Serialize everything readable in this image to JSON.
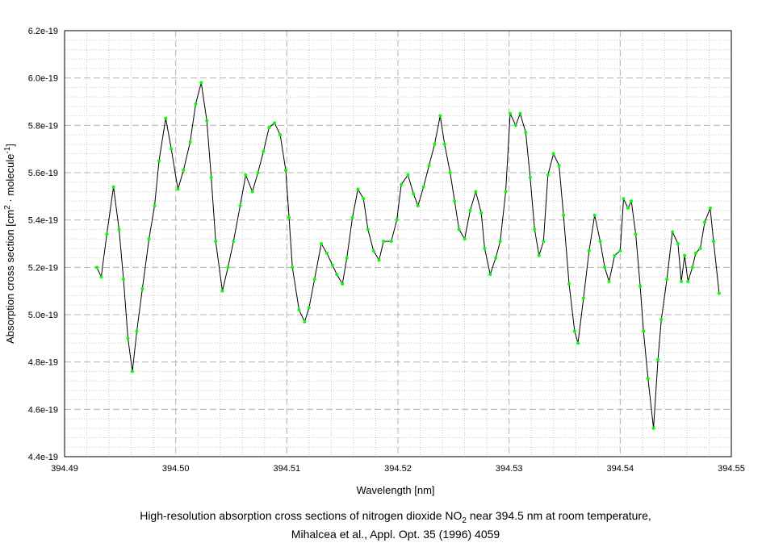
{
  "chart_data": {
    "type": "line",
    "title_lines": [
      [
        "High-resolution absorption cross sections of nitrogen dioxide NO",
        "2",
        " near 394.5 nm at room temperature,"
      ],
      [
        "Mihalcea et al., Appl. Opt. 35 (1996) 4059"
      ]
    ],
    "x_label": "Wavelength [nm]",
    "y_label": [
      "Absorption cross section [cm",
      "2",
      " · molecule",
      "-1",
      "]"
    ],
    "xlim": [
      394.49,
      394.55
    ],
    "xticks": [
      394.49,
      {
        "value": 394.5,
        "label": "394.50"
      },
      394.51,
      394.52,
      394.53,
      394.54,
      394.55
    ],
    "ylim": [
      4.4e-19,
      6.2e-19
    ],
    "yticks": [
      4.4e-19,
      4.6e-19,
      4.8e-19,
      {
        "value": 5e-19,
        "label": "5.0e-19"
      },
      5.2e-19,
      5.4e-19,
      5.6e-19,
      5.8e-19,
      {
        "value": 6e-19,
        "label": "6.0e-19"
      },
      6.2e-19
    ],
    "grid": true,
    "line_color": "#000000",
    "marker_color": "#00ff00",
    "x": [
      394.4929,
      394.4933,
      394.4938,
      394.4944,
      394.4949,
      394.4953,
      394.4957,
      394.4961,
      394.4965,
      394.497,
      394.4976,
      394.4981,
      394.4985,
      394.4991,
      394.4996,
      394.5002,
      394.5007,
      394.5013,
      394.5018,
      394.5023,
      394.5028,
      394.5032,
      394.5036,
      394.5042,
      394.5047,
      394.5052,
      394.5058,
      394.5063,
      394.5069,
      394.5074,
      394.5079,
      394.5084,
      394.5089,
      394.5094,
      394.5099,
      394.5102,
      394.5105,
      394.5111,
      394.5116,
      394.512,
      394.5125,
      394.5131,
      394.5136,
      394.5141,
      394.5145,
      394.515,
      394.5154,
      394.5159,
      394.5164,
      394.5169,
      394.5173,
      394.5178,
      394.5183,
      394.5187,
      394.5194,
      394.5199,
      394.5203,
      394.5209,
      394.5214,
      394.5218,
      394.5223,
      394.5228,
      394.5233,
      394.5238,
      394.5242,
      394.5247,
      394.5251,
      394.5255,
      394.526,
      394.5265,
      394.527,
      394.5275,
      394.5278,
      394.5283,
      394.5288,
      394.5292,
      394.5297,
      394.5301,
      394.5306,
      394.531,
      394.5315,
      394.5319,
      394.5323,
      394.5327,
      394.5331,
      394.5335,
      394.534,
      394.5345,
      394.5349,
      394.5354,
      394.5359,
      394.5362,
      394.5367,
      394.5372,
      394.5377,
      394.5382,
      394.5386,
      394.539,
      394.5395,
      394.54,
      394.5403,
      394.5407,
      394.541,
      394.5414,
      394.5418,
      394.5421,
      394.5425,
      394.543,
      394.5434,
      394.5437,
      394.5442,
      394.5447,
      394.5452,
      394.5455,
      394.5458,
      394.5461,
      394.5465,
      394.5468,
      394.5472,
      394.5476,
      394.5481,
      394.5484,
      394.5489
    ],
    "values": [
      5.2e-19,
      5.16e-19,
      5.34e-19,
      5.54e-19,
      5.36e-19,
      5.15e-19,
      4.9e-19,
      4.76e-19,
      4.93e-19,
      5.11e-19,
      5.32e-19,
      5.46e-19,
      5.65e-19,
      5.83e-19,
      5.7e-19,
      5.53e-19,
      5.61e-19,
      5.73e-19,
      5.89e-19,
      5.98e-19,
      5.82e-19,
      5.58e-19,
      5.31e-19,
      5.1e-19,
      5.2e-19,
      5.31e-19,
      5.46e-19,
      5.59e-19,
      5.52e-19,
      5.6e-19,
      5.69e-19,
      5.79e-19,
      5.81e-19,
      5.76e-19,
      5.61e-19,
      5.41e-19,
      5.2e-19,
      5.02e-19,
      4.97e-19,
      5.03e-19,
      5.15e-19,
      5.3e-19,
      5.26e-19,
      5.21e-19,
      5.17e-19,
      5.13e-19,
      5.24e-19,
      5.41e-19,
      5.53e-19,
      5.49e-19,
      5.36e-19,
      5.27e-19,
      5.23e-19,
      5.31e-19,
      5.31e-19,
      5.4e-19,
      5.55e-19,
      5.59e-19,
      5.51e-19,
      5.46e-19,
      5.54e-19,
      5.63e-19,
      5.72e-19,
      5.84e-19,
      5.72e-19,
      5.6e-19,
      5.48e-19,
      5.36e-19,
      5.32e-19,
      5.44e-19,
      5.52e-19,
      5.43e-19,
      5.28e-19,
      5.17e-19,
      5.24e-19,
      5.31e-19,
      5.52e-19,
      5.85e-19,
      5.8e-19,
      5.85e-19,
      5.77e-19,
      5.58e-19,
      5.36e-19,
      5.25e-19,
      5.31e-19,
      5.59e-19,
      5.68e-19,
      5.63e-19,
      5.42e-19,
      5.13e-19,
      4.93e-19,
      4.88e-19,
      5.07e-19,
      5.27e-19,
      5.42e-19,
      5.31e-19,
      5.2e-19,
      5.14e-19,
      5.25e-19,
      5.27e-19,
      5.49e-19,
      5.45e-19,
      5.48e-19,
      5.34e-19,
      5.12e-19,
      4.93e-19,
      4.73e-19,
      4.52e-19,
      4.81e-19,
      4.98e-19,
      5.15e-19,
      5.35e-19,
      5.3e-19,
      5.14e-19,
      5.25e-19,
      5.14e-19,
      5.2e-19,
      5.26e-19,
      5.28e-19,
      5.39e-19,
      5.45e-19,
      5.31e-19,
      5.09e-19
    ]
  }
}
